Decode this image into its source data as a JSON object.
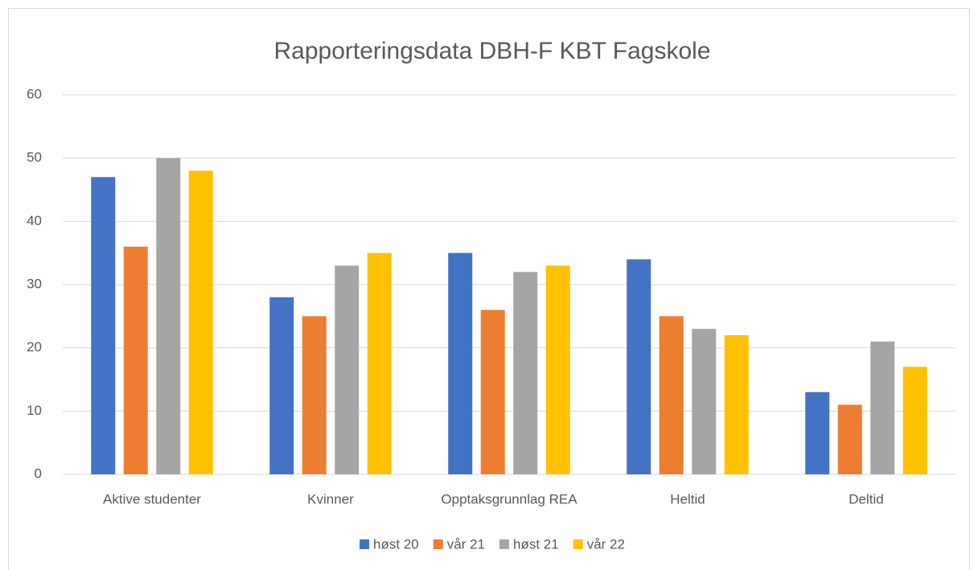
{
  "chart_data": {
    "type": "bar",
    "title": "Rapporteringsdata DBH-F KBT Fagskole",
    "categories": [
      "Aktive studenter",
      "Kvinner",
      "Opptaksgrunnlag REA",
      "Heltid",
      "Deltid"
    ],
    "series": [
      {
        "name": "høst 20",
        "color": "#4472c4",
        "values": [
          47,
          28,
          35,
          34,
          13
        ]
      },
      {
        "name": "vår 21",
        "color": "#ed7d31",
        "values": [
          36,
          25,
          26,
          25,
          11
        ]
      },
      {
        "name": "høst 21",
        "color": "#a5a5a5",
        "values": [
          50,
          33,
          32,
          23,
          21
        ]
      },
      {
        "name": "vår 22",
        "color": "#ffc000",
        "values": [
          48,
          35,
          33,
          22,
          17
        ]
      }
    ],
    "ylim": [
      0,
      60
    ],
    "yticks": [
      0,
      10,
      20,
      30,
      40,
      50,
      60
    ],
    "grid": true,
    "legend": "bottom"
  }
}
